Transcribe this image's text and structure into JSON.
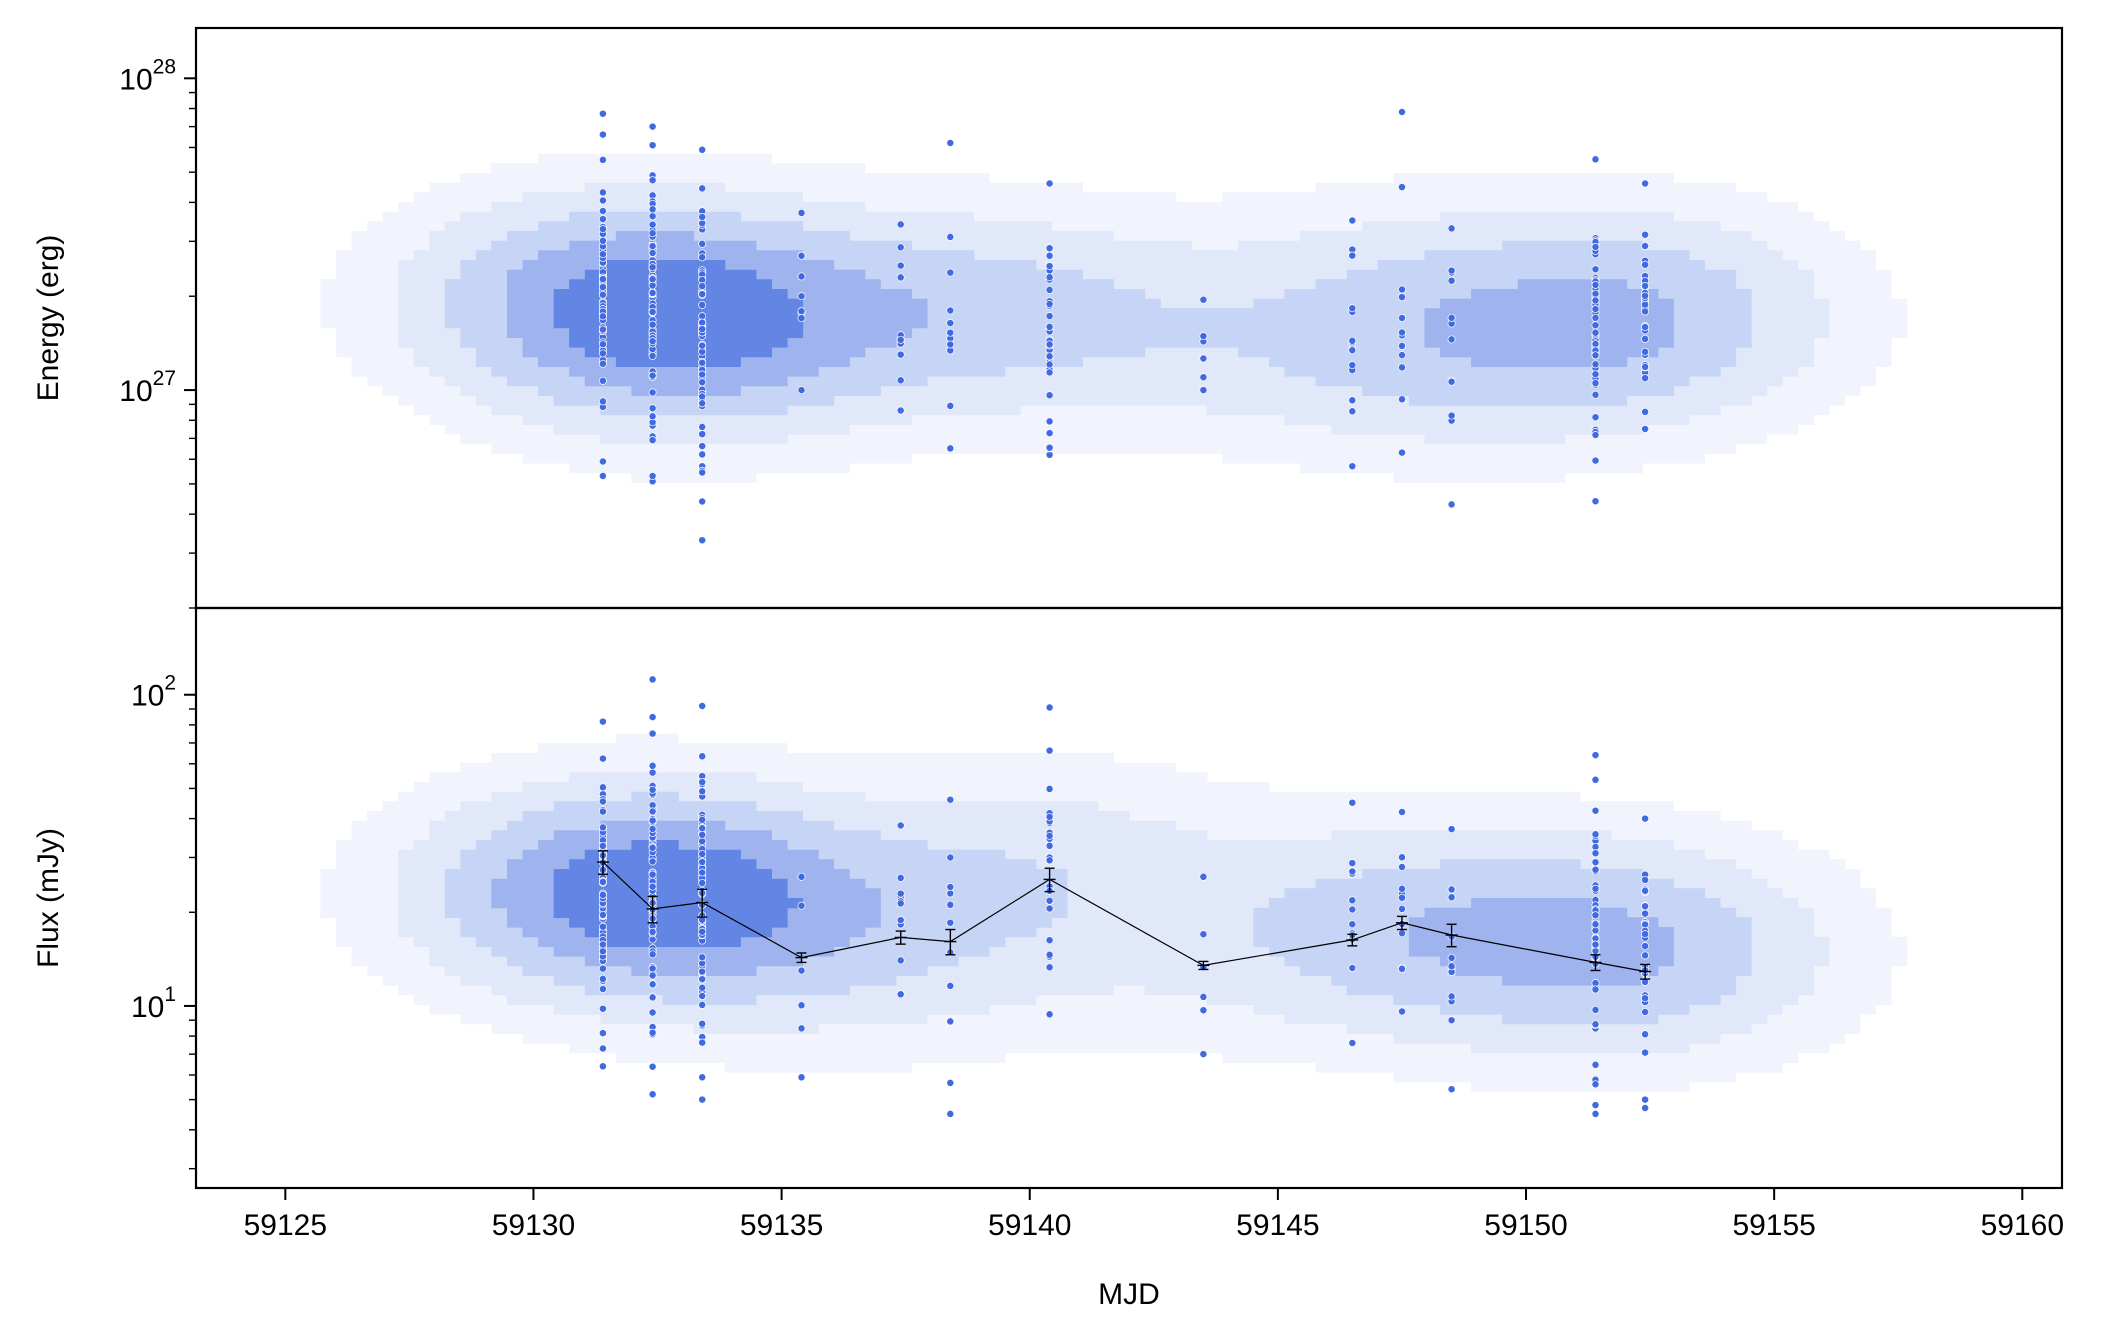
{
  "figure": {
    "xlabel": "MJD",
    "x_tick_labels": [
      "59125",
      "59130",
      "59135",
      "59140",
      "59145",
      "59150",
      "59155",
      "59160"
    ]
  },
  "chart_data": [
    {
      "type": "scatter",
      "panel": "top",
      "ylabel": "Energy (erg)",
      "yscale": "log",
      "xlim": [
        59123.2,
        59160.8
      ],
      "ylim": [
        2e+26,
        1.45e+28
      ],
      "y_tick_labels": [
        {
          "value": 1e+27,
          "base": "10",
          "exp": "27"
        },
        {
          "value": 1e+28,
          "base": "10",
          "exp": "28"
        }
      ],
      "point_color": "#4169e1",
      "density_contours": {
        "colors": [
          "#f1f4fc",
          "#e1e8f9",
          "#c6d4f5",
          "#9fb4ee",
          "#6386e4"
        ],
        "note_levels": 5
      },
      "columns": [
        {
          "x": 59131.4,
          "min": 5.3e+26,
          "max": 7.7e+27,
          "n": 70,
          "extra": [
            5.3e+26,
            5.9e+26,
            6.6e+27,
            7.7e+27
          ]
        },
        {
          "x": 59132.4,
          "min": 5.1e+26,
          "max": 7e+27,
          "n": 80,
          "extra": [
            5.1e+26,
            5.3e+26,
            7e+27
          ]
        },
        {
          "x": 59133.4,
          "min": 3.3e+26,
          "max": 5.9e+27,
          "n": 75,
          "extra": [
            3.3e+26,
            5.7e+26,
            5.9e+27
          ]
        },
        {
          "x": 59135.4,
          "min": 1e+27,
          "max": 3.7e+27,
          "n": 5,
          "extra": [
            1e+27,
            2e+27,
            2.7e+27,
            3.7e+27
          ]
        },
        {
          "x": 59137.4,
          "min": 8.6e+26,
          "max": 3.4e+27,
          "n": 6,
          "extra": [
            8.6e+26,
            1.3e+27,
            1.5e+27,
            3.4e+27
          ]
        },
        {
          "x": 59138.4,
          "min": 6.5e+26,
          "max": 6.2e+27,
          "n": 6,
          "extra": [
            6.5e+26,
            8.9e+26,
            1.8e+27,
            3.1e+27,
            6.2e+27
          ]
        },
        {
          "x": 59140.4,
          "min": 6.2e+26,
          "max": 4.6e+27,
          "n": 30,
          "extra": [
            6.2e+26,
            6.5e+26,
            4.6e+27
          ]
        },
        {
          "x": 59143.5,
          "min": 1e+27,
          "max": 1.95e+27,
          "n": 3,
          "extra": [
            1e+27,
            1.1e+27,
            1.95e+27
          ]
        },
        {
          "x": 59146.5,
          "min": 5.7e+26,
          "max": 3.5e+27,
          "n": 12,
          "extra": [
            5.7e+26,
            3.5e+27
          ]
        },
        {
          "x": 59147.5,
          "min": 6.3e+26,
          "max": 7.8e+27,
          "n": 10,
          "extra": [
            6.3e+26,
            7.8e+27
          ]
        },
        {
          "x": 59148.5,
          "min": 4.3e+26,
          "max": 3.3e+27,
          "n": 10,
          "extra": [
            4.3e+26,
            3.3e+27
          ]
        },
        {
          "x": 59151.4,
          "min": 4.4e+26,
          "max": 5.5e+27,
          "n": 60,
          "extra": [
            4.4e+26,
            5.5e+27
          ]
        },
        {
          "x": 59152.4,
          "min": 7.5e+26,
          "max": 4.6e+27,
          "n": 35,
          "extra": [
            7.5e+26,
            4.6e+27
          ]
        }
      ]
    },
    {
      "type": "line",
      "panel": "bottom",
      "ylabel": "Flux (mJy)",
      "yscale": "log",
      "xlim": [
        59123.2,
        59160.8
      ],
      "ylim": [
        2.6,
        190
      ],
      "y_tick_labels": [
        {
          "value": 10,
          "base": "10",
          "exp": "1"
        },
        {
          "value": 100,
          "base": "10",
          "exp": "2"
        }
      ],
      "point_color": "#4169e1",
      "line_color": "#000000",
      "density_contours": {
        "colors": [
          "#f1f4fc",
          "#e1e8f9",
          "#c6d4f5",
          "#9fb4ee",
          "#6386e4"
        ],
        "note_levels": 5
      },
      "columns": [
        {
          "x": 59131.4,
          "min": 6.4,
          "max": 82,
          "n": 70,
          "extra": [
            6.4,
            7.3,
            9.8,
            82
          ]
        },
        {
          "x": 59132.4,
          "min": 5.2,
          "max": 112,
          "n": 80,
          "extra": [
            5.2,
            75,
            112
          ]
        },
        {
          "x": 59133.4,
          "min": 5.0,
          "max": 92,
          "n": 75,
          "extra": [
            5.0,
            5.9,
            92
          ]
        },
        {
          "x": 59135.4,
          "min": 5.9,
          "max": 26,
          "n": 3,
          "extra": [
            5.9,
            21,
            26
          ]
        },
        {
          "x": 59137.4,
          "min": 10.9,
          "max": 38,
          "n": 8,
          "extra": [
            10.9,
            38
          ]
        },
        {
          "x": 59138.4,
          "min": 4.5,
          "max": 46,
          "n": 6,
          "extra": [
            4.5,
            11.6,
            23,
            30,
            46
          ]
        },
        {
          "x": 59140.4,
          "min": 9.4,
          "max": 91,
          "n": 25,
          "extra": [
            9.4,
            91
          ]
        },
        {
          "x": 59143.5,
          "min": 7.0,
          "max": 26,
          "n": 3,
          "extra": [
            7.0,
            17,
            26
          ]
        },
        {
          "x": 59146.5,
          "min": 7.6,
          "max": 45,
          "n": 12,
          "extra": [
            7.6,
            45
          ]
        },
        {
          "x": 59147.5,
          "min": 9.6,
          "max": 42,
          "n": 10,
          "extra": [
            9.6,
            42
          ]
        },
        {
          "x": 59148.5,
          "min": 5.4,
          "max": 37,
          "n": 10,
          "extra": [
            5.4,
            9.0,
            37
          ]
        },
        {
          "x": 59151.4,
          "min": 4.5,
          "max": 64,
          "n": 55,
          "extra": [
            4.5,
            4.8,
            64
          ]
        },
        {
          "x": 59152.4,
          "min": 4.7,
          "max": 40,
          "n": 35,
          "extra": [
            4.7,
            5.0,
            40
          ]
        }
      ],
      "series": [
        {
          "x": [
            59131.4,
            59132.4,
            59133.4,
            59135.4,
            59137.4,
            59138.4,
            59140.4,
            59143.5,
            59146.5,
            59147.5,
            59148.5,
            59151.4,
            59152.4
          ],
          "y": [
            29,
            20.5,
            21.5,
            14.3,
            16.6,
            16.1,
            25.5,
            13.5,
            16.3,
            18.5,
            16.9,
            13.8,
            12.9
          ],
          "yerr": [
            2.5,
            2.0,
            2.2,
            0.5,
            0.8,
            1.5,
            2.2,
            0.4,
            0.7,
            0.9,
            1.4,
            0.8,
            0.7
          ]
        }
      ]
    }
  ]
}
